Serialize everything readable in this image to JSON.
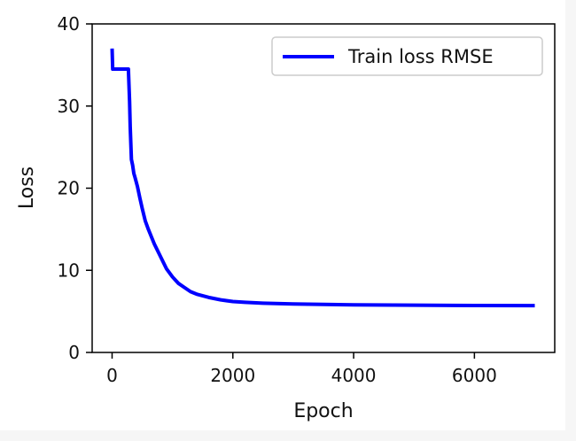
{
  "chart_data": {
    "type": "line",
    "title": "",
    "xlabel": "Epoch",
    "ylabel": "Loss",
    "xlim": [
      -330,
      7330
    ],
    "ylim": [
      0,
      40
    ],
    "x_ticks": [
      {
        "value": 0,
        "label": "0"
      },
      {
        "value": 2000,
        "label": "2000"
      },
      {
        "value": 4000,
        "label": "4000"
      },
      {
        "value": 6000,
        "label": "6000"
      }
    ],
    "y_ticks": [
      {
        "value": 0,
        "label": "0"
      },
      {
        "value": 10,
        "label": "10"
      },
      {
        "value": 20,
        "label": "20"
      },
      {
        "value": 30,
        "label": "30"
      },
      {
        "value": 40,
        "label": "40"
      }
    ],
    "grid": false,
    "legend_position": "top-right",
    "series": [
      {
        "name": "Train loss RMSE",
        "color": "#0000ff",
        "x": [
          0,
          10,
          20,
          100,
          200,
          270,
          280,
          290,
          300,
          320,
          340,
          360,
          380,
          420,
          460,
          500,
          550,
          600,
          650,
          700,
          800,
          900,
          1000,
          1100,
          1200,
          1300,
          1400,
          1600,
          1800,
          2000,
          2200,
          2500,
          3000,
          3500,
          4000,
          5000,
          6000,
          7000
        ],
        "y": [
          37.0,
          34.5,
          34.5,
          34.5,
          34.5,
          34.5,
          32.5,
          30.5,
          27.5,
          23.5,
          22.8,
          21.8,
          21.3,
          20.2,
          18.8,
          17.5,
          16.0,
          15.0,
          14.1,
          13.2,
          11.7,
          10.2,
          9.2,
          8.4,
          7.9,
          7.4,
          7.1,
          6.7,
          6.4,
          6.2,
          6.1,
          6.0,
          5.9,
          5.85,
          5.8,
          5.75,
          5.72,
          5.7
        ]
      }
    ]
  }
}
